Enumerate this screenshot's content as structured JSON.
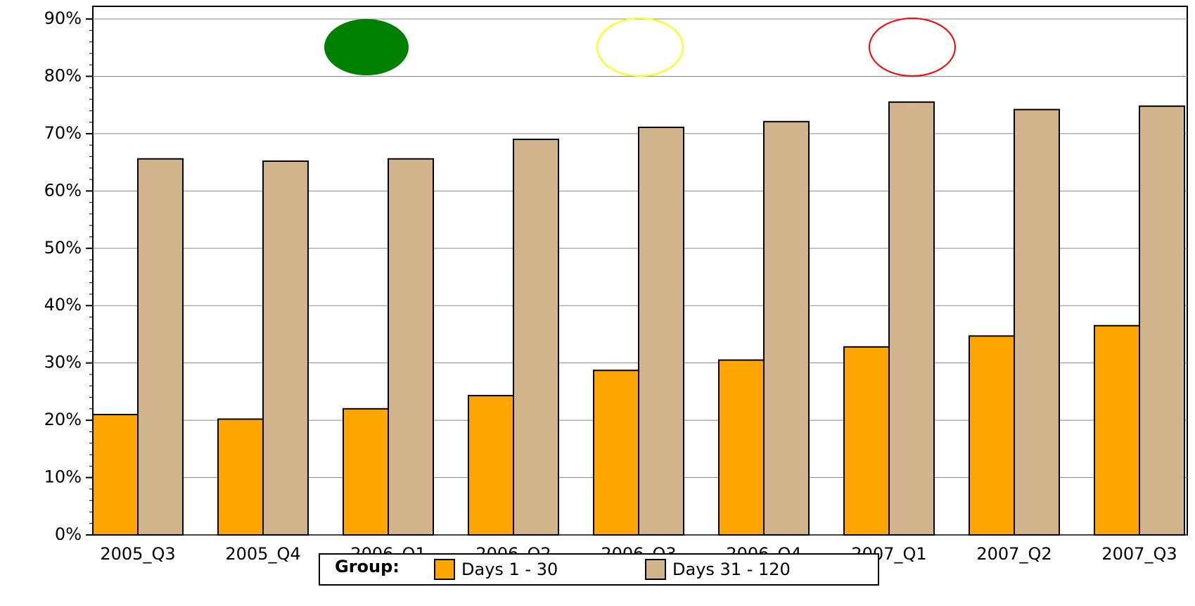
{
  "chart_data": {
    "type": "bar",
    "categories": [
      "2005_Q3",
      "2005_Q4",
      "2006_Q1",
      "2006_Q2",
      "2006_Q3",
      "2006_Q4",
      "2007_Q1",
      "2007_Q2",
      "2007_Q3"
    ],
    "series": [
      {
        "name": "Days 1 - 30",
        "color": "#ffa500",
        "values": [
          21,
          20.2,
          22,
          24.3,
          28.7,
          30.5,
          32.8,
          34.7,
          36.5
        ]
      },
      {
        "name": "Days 31 - 120",
        "color": "#d2b48c",
        "values": [
          65.6,
          65.2,
          65.6,
          69,
          71.1,
          72.1,
          75.5,
          74.2,
          74.8
        ]
      }
    ],
    "legend_title": "Group:",
    "ylim": [
      0,
      90
    ],
    "yticks": [
      {
        "value": 0,
        "label": "0%"
      },
      {
        "value": 10,
        "label": "10%"
      },
      {
        "value": 20,
        "label": "20%"
      },
      {
        "value": 30,
        "label": "30%"
      },
      {
        "value": 40,
        "label": "40%"
      },
      {
        "value": 50,
        "label": "50%"
      },
      {
        "value": 60,
        "label": "60%"
      },
      {
        "value": 70,
        "label": "70%"
      },
      {
        "value": 80,
        "label": "80%"
      },
      {
        "value": 90,
        "label": "90%"
      }
    ],
    "grid": true
  }
}
